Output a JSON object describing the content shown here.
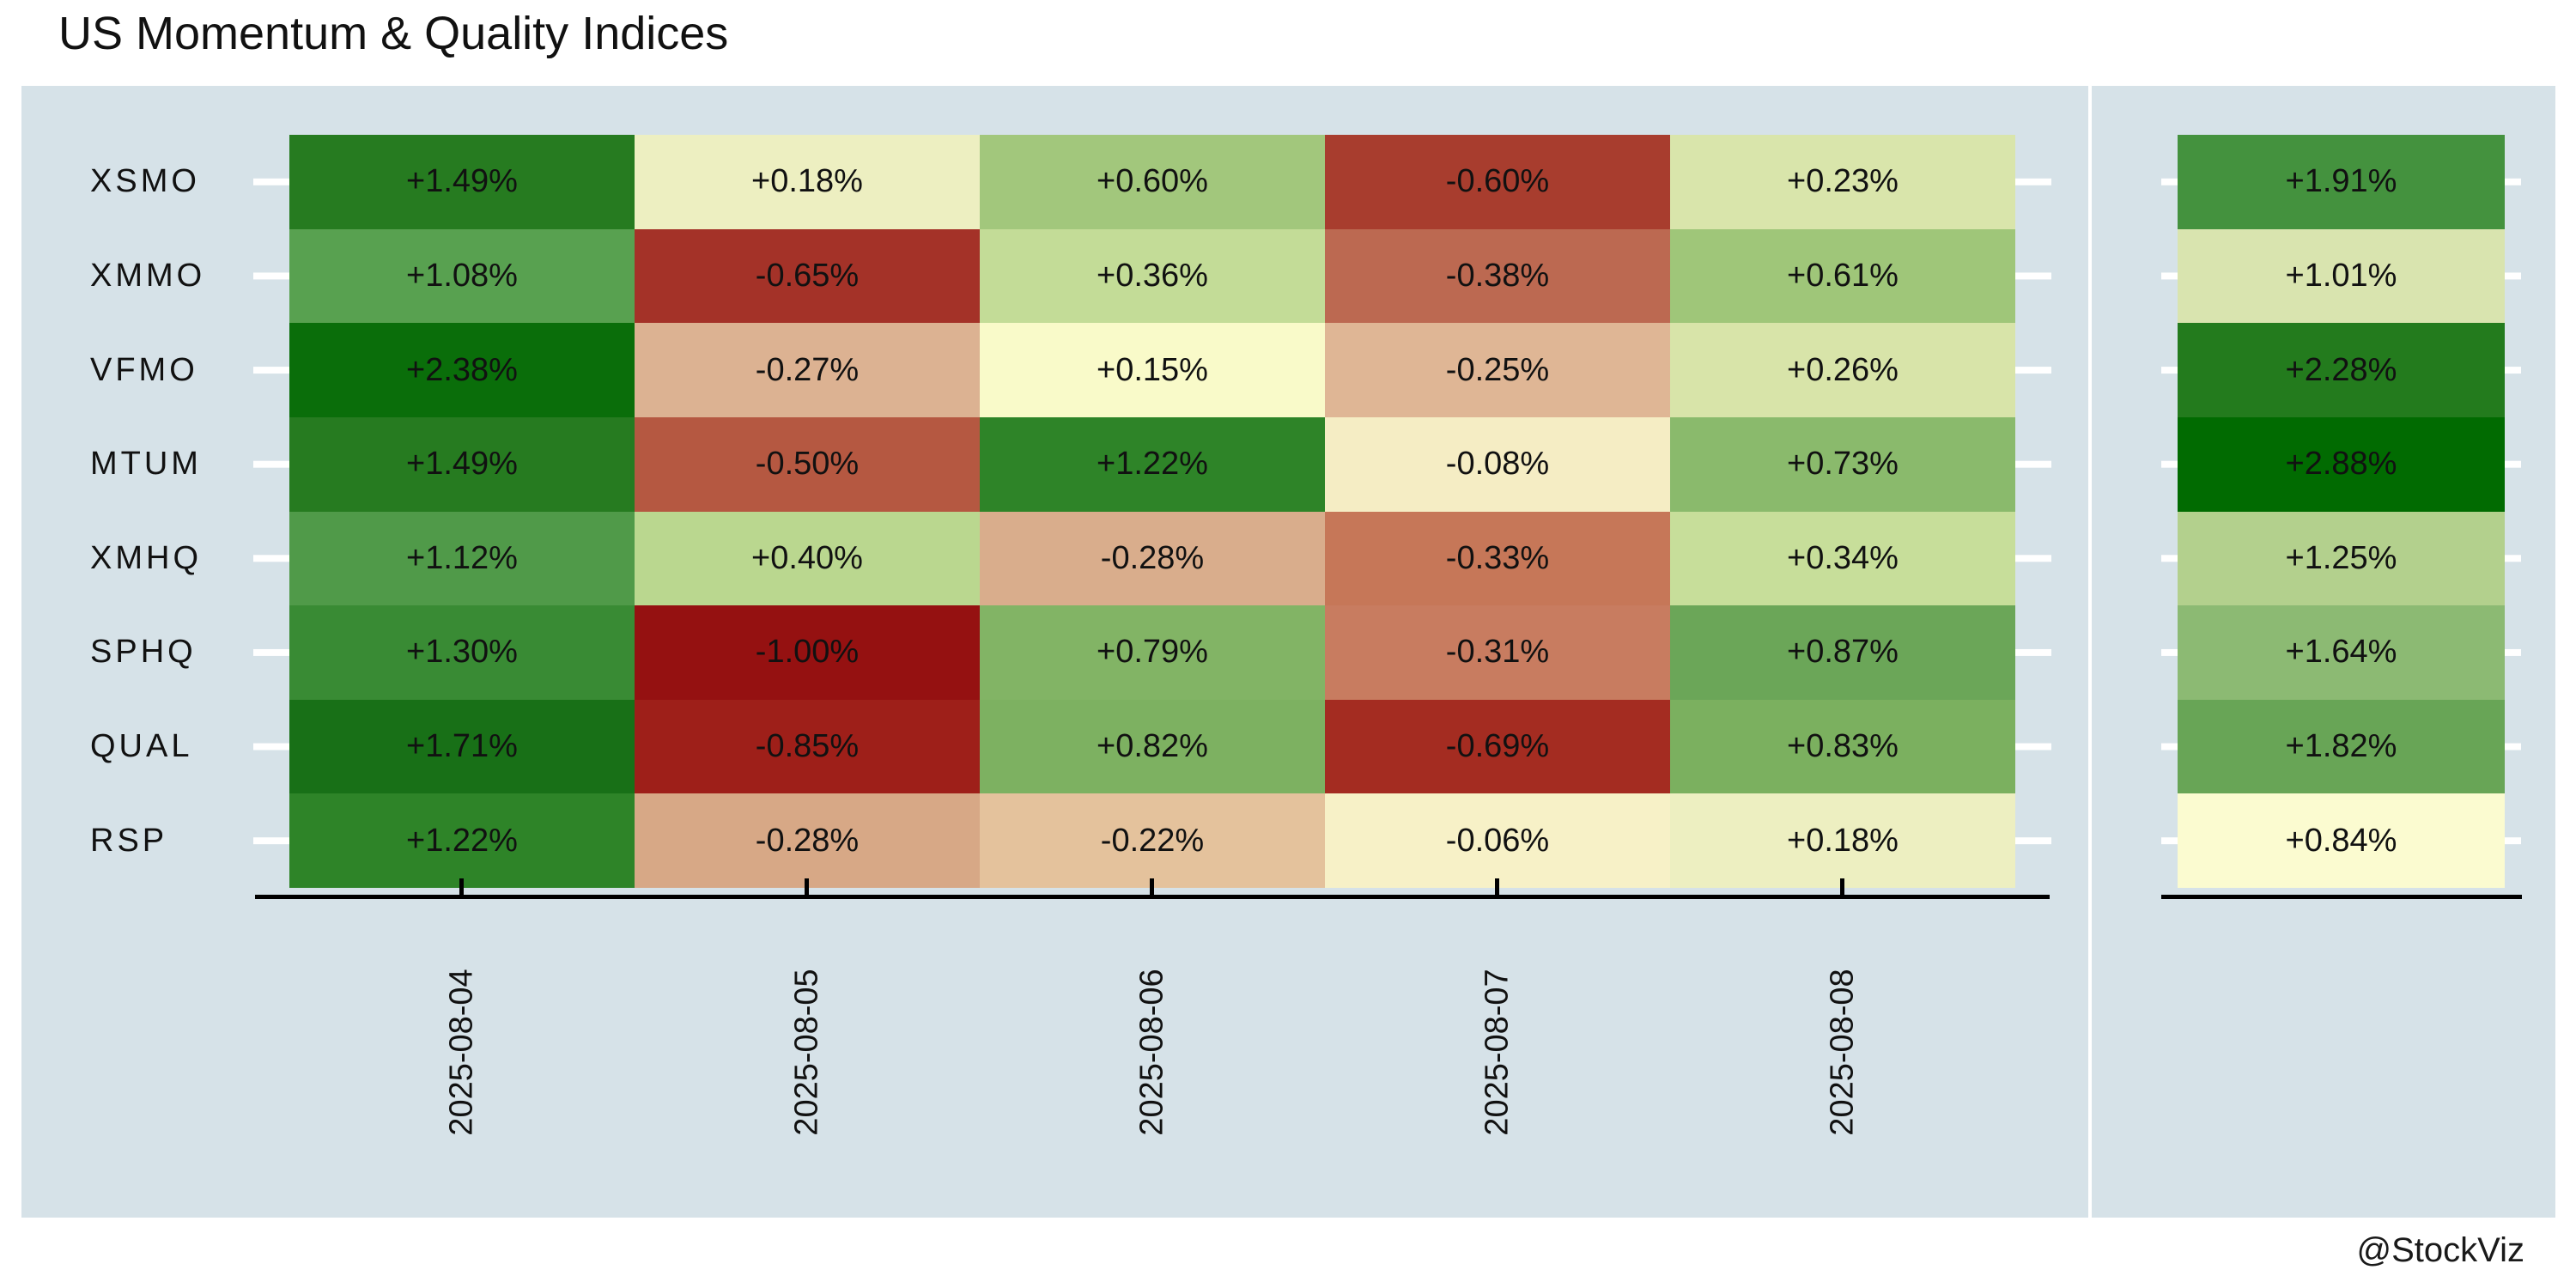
{
  "title": "US Momentum & Quality Indices",
  "credit": "@StockViz",
  "colors": {
    "page_bg": "#ffffff",
    "panel_bg": "#d6e2e8",
    "axis": "#000000",
    "tick_white": "#ffffff",
    "text": "#111111"
  },
  "chart_data": {
    "type": "heatmap",
    "title": "US Momentum & Quality Indices",
    "x_labels": [
      "2025-08-04",
      "2025-08-05",
      "2025-08-06",
      "2025-08-07",
      "2025-08-08"
    ],
    "y_labels": [
      "XSMO",
      "XMMO",
      "VFMO",
      "MTUM",
      "XMHQ",
      "SPHQ",
      "QUAL",
      "RSP"
    ],
    "value_format": "signed percent, two decimals",
    "legend_position": "none",
    "grid": false,
    "rows": [
      {
        "name": "XSMO",
        "cells": [
          {
            "label": "+1.49%",
            "value": 1.49,
            "color": "#267B20"
          },
          {
            "label": "+0.18%",
            "value": 0.18,
            "color": "#EDEFC1"
          },
          {
            "label": "+0.60%",
            "value": 0.6,
            "color": "#A2C77C"
          },
          {
            "label": "-0.60%",
            "value": -0.6,
            "color": "#A83D2E"
          },
          {
            "label": "+0.23%",
            "value": 0.23,
            "color": "#D9E5AB"
          }
        ],
        "total": {
          "label": "+1.91%",
          "value": 1.91,
          "color": "#44923E"
        }
      },
      {
        "name": "XMMO",
        "cells": [
          {
            "label": "+1.08%",
            "value": 1.08,
            "color": "#58A150"
          },
          {
            "label": "-0.65%",
            "value": -0.65,
            "color": "#A43228"
          },
          {
            "label": "+0.36%",
            "value": 0.36,
            "color": "#C3DC97"
          },
          {
            "label": "-0.38%",
            "value": -0.38,
            "color": "#BC6951"
          },
          {
            "label": "+0.61%",
            "value": 0.61,
            "color": "#9FC679"
          }
        ],
        "total": {
          "label": "+1.01%",
          "value": 1.01,
          "color": "#D9E4AF"
        }
      },
      {
        "name": "VFMO",
        "cells": [
          {
            "label": "+2.38%",
            "value": 2.38,
            "color": "#0A6E0A"
          },
          {
            "label": "-0.27%",
            "value": -0.27,
            "color": "#DCB292"
          },
          {
            "label": "+0.15%",
            "value": 0.15,
            "color": "#F9FAC9"
          },
          {
            "label": "-0.25%",
            "value": -0.25,
            "color": "#DFB695"
          },
          {
            "label": "+0.26%",
            "value": 0.26,
            "color": "#D8E4A9"
          }
        ],
        "total": {
          "label": "+2.28%",
          "value": 2.28,
          "color": "#237B1D"
        }
      },
      {
        "name": "MTUM",
        "cells": [
          {
            "label": "+1.49%",
            "value": 1.49,
            "color": "#267B20"
          },
          {
            "label": "-0.50%",
            "value": -0.5,
            "color": "#B55841"
          },
          {
            "label": "+1.22%",
            "value": 1.22,
            "color": "#2E8428"
          },
          {
            "label": "-0.08%",
            "value": -0.08,
            "color": "#F5EDC4"
          },
          {
            "label": "+0.73%",
            "value": 0.73,
            "color": "#8ABA6C"
          }
        ],
        "total": {
          "label": "+2.88%",
          "value": 2.88,
          "color": "#016B01"
        }
      },
      {
        "name": "XMHQ",
        "cells": [
          {
            "label": "+1.12%",
            "value": 1.12,
            "color": "#509A49"
          },
          {
            "label": "+0.40%",
            "value": 0.4,
            "color": "#BAD78F"
          },
          {
            "label": "-0.28%",
            "value": -0.28,
            "color": "#D9AD8C"
          },
          {
            "label": "-0.33%",
            "value": -0.33,
            "color": "#C67758"
          },
          {
            "label": "+0.34%",
            "value": 0.34,
            "color": "#C7DE9A"
          }
        ],
        "total": {
          "label": "+1.25%",
          "value": 1.25,
          "color": "#B3D08D"
        }
      },
      {
        "name": "SPHQ",
        "cells": [
          {
            "label": "+1.30%",
            "value": 1.3,
            "color": "#398B34"
          },
          {
            "label": "-1.00%",
            "value": -1.0,
            "color": "#951111"
          },
          {
            "label": "+0.79%",
            "value": 0.79,
            "color": "#82B465"
          },
          {
            "label": "-0.31%",
            "value": -0.31,
            "color": "#C87C60"
          },
          {
            "label": "+0.87%",
            "value": 0.87,
            "color": "#6BA658"
          }
        ],
        "total": {
          "label": "+1.64%",
          "value": 1.64,
          "color": "#8CBA73"
        }
      },
      {
        "name": "QUAL",
        "cells": [
          {
            "label": "+1.71%",
            "value": 1.71,
            "color": "#187017"
          },
          {
            "label": "-0.85%",
            "value": -0.85,
            "color": "#9E1F19"
          },
          {
            "label": "+0.82%",
            "value": 0.82,
            "color": "#7DB161"
          },
          {
            "label": "-0.69%",
            "value": -0.69,
            "color": "#A42C21"
          },
          {
            "label": "+0.83%",
            "value": 0.83,
            "color": "#7BB05F"
          }
        ],
        "total": {
          "label": "+1.82%",
          "value": 1.82,
          "color": "#68A556"
        }
      },
      {
        "name": "RSP",
        "cells": [
          {
            "label": "+1.22%",
            "value": 1.22,
            "color": "#2E8428"
          },
          {
            "label": "-0.28%",
            "value": -0.28,
            "color": "#D7A886"
          },
          {
            "label": "-0.22%",
            "value": -0.22,
            "color": "#E4C29C"
          },
          {
            "label": "-0.06%",
            "value": -0.06,
            "color": "#F7F1C7"
          },
          {
            "label": "+0.18%",
            "value": 0.18,
            "color": "#EDEFC1"
          }
        ],
        "total": {
          "label": "+0.84%",
          "value": 0.84,
          "color": "#FBFBD0"
        }
      }
    ]
  }
}
